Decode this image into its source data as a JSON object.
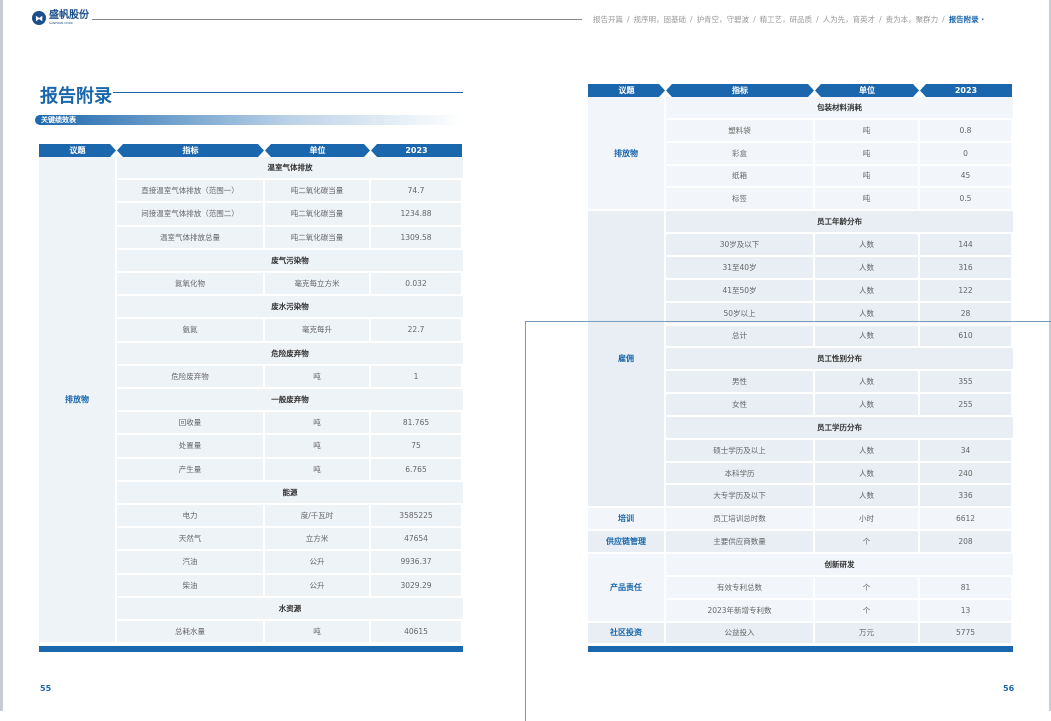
{
  "logo": {
    "name": "盛帆股份",
    "sub": "SANFRAN CORP."
  },
  "nav": [
    "报告开篇",
    "/",
    "规序明，固基础",
    "/",
    "护青空，守碧波",
    "/",
    "精工艺，研品质",
    "/",
    "人为先，育英才",
    "/",
    "责为本，聚群力",
    "/",
    "报告附录 ·"
  ],
  "page_title": "报告附录",
  "section_label": "关键绩效表",
  "headers": [
    "议题",
    "指标",
    "单位",
    "2023"
  ],
  "left_table": [
    {
      "topic": "排放物",
      "groups": [
        {
          "title": "温室气体排放",
          "rows": [
            [
              "直接温室气体排放（范围一）",
              "吨二氧化碳当量",
              "74.7"
            ],
            [
              "间接温室气体排放（范围二）",
              "吨二氧化碳当量",
              "1234.88"
            ],
            [
              "温室气体排放总量",
              "吨二氧化碳当量",
              "1309.58"
            ]
          ]
        },
        {
          "title": "废气污染物",
          "rows": [
            [
              "氮氧化物",
              "毫克每立方米",
              "0.032"
            ]
          ]
        },
        {
          "title": "废水污染物",
          "rows": [
            [
              "氨氮",
              "毫克每升",
              "22.7"
            ]
          ]
        },
        {
          "title": "危险废弃物",
          "rows": [
            [
              "危险废弃物",
              "吨",
              "1"
            ]
          ]
        },
        {
          "title": "一般废弃物",
          "rows": [
            [
              "回收量",
              "吨",
              "81.765"
            ],
            [
              "处置量",
              "吨",
              "75"
            ],
            [
              "产生量",
              "吨",
              "6.765"
            ]
          ]
        },
        {
          "title": "能源",
          "rows": [
            [
              "电力",
              "度/千瓦时",
              "3585225"
            ],
            [
              "天然气",
              "立方米",
              "47654"
            ],
            [
              "汽油",
              "公升",
              "9936.37"
            ],
            [
              "柴油",
              "公升",
              "3029.29"
            ]
          ]
        },
        {
          "title": "水资源",
          "rows": [
            [
              "总耗水量",
              "吨",
              "40615"
            ]
          ]
        }
      ]
    }
  ],
  "right_table": [
    {
      "topic": "排放物",
      "groups": [
        {
          "title": "包装材料消耗",
          "rows": [
            [
              "塑料袋",
              "吨",
              "0.8"
            ],
            [
              "彩盒",
              "吨",
              "0"
            ],
            [
              "纸箱",
              "吨",
              "45"
            ],
            [
              "标签",
              "吨",
              "0.5"
            ]
          ]
        }
      ]
    },
    {
      "topic": "雇佣",
      "groups": [
        {
          "title": "员工年龄分布",
          "rows": [
            [
              "30岁及以下",
              "人数",
              "144"
            ],
            [
              "31至40岁",
              "人数",
              "316"
            ],
            [
              "41至50岁",
              "人数",
              "122"
            ],
            [
              "50岁以上",
              "人数",
              "28"
            ],
            [
              "总计",
              "人数",
              "610"
            ]
          ]
        },
        {
          "title": "员工性别分布",
          "rows": [
            [
              "男性",
              "人数",
              "355"
            ],
            [
              "女性",
              "人数",
              "255"
            ]
          ]
        },
        {
          "title": "员工学历分布",
          "rows": [
            [
              "硕士学历及以上",
              "人数",
              "34"
            ],
            [
              "本科学历",
              "人数",
              "240"
            ],
            [
              "大专学历及以下",
              "人数",
              "336"
            ]
          ]
        }
      ]
    },
    {
      "topic": "培训",
      "groups": [
        {
          "title": null,
          "rows": [
            [
              "员工培训总时数",
              "小时",
              "6612"
            ]
          ]
        }
      ]
    },
    {
      "topic": "供应链管理",
      "groups": [
        {
          "title": null,
          "rows": [
            [
              "主要供应商数量",
              "个",
              "208"
            ]
          ]
        }
      ]
    },
    {
      "topic": "产品责任",
      "groups": [
        {
          "title": "创新研发",
          "rows": [
            [
              "有效专利总数",
              "个",
              "81"
            ],
            [
              "2023年新增专利数",
              "个",
              "13"
            ]
          ]
        }
      ]
    },
    {
      "topic": "社区投资",
      "groups": [
        {
          "title": null,
          "rows": [
            [
              "公益投入",
              "万元",
              "5775"
            ]
          ]
        }
      ]
    }
  ],
  "page_left": "55",
  "page_right": "56",
  "colors": {
    "accent": "#1b67ad"
  }
}
